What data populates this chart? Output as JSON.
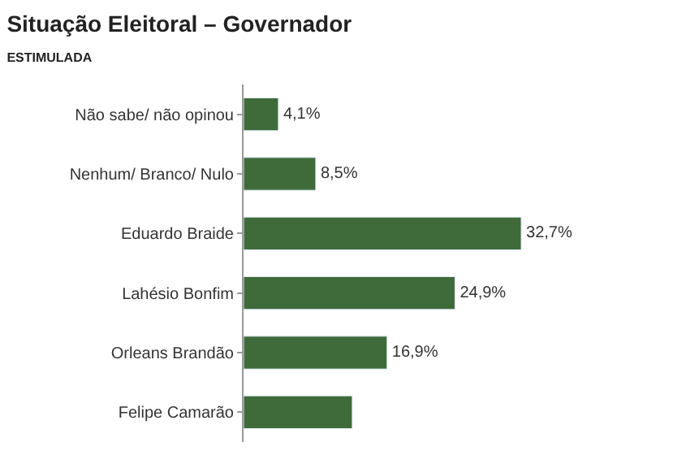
{
  "chart_data": {
    "type": "bar",
    "orientation": "horizontal",
    "title": "Situação Eleitoral – Governador",
    "subtitle": "ESTIMULADA",
    "categories": [
      "Não sabe/ não opinou",
      "Nenhum/ Branco/ Nulo",
      "Eduardo Braide",
      "Lahésio Bonfim",
      "Orleans Brandão",
      "Felipe Camarão"
    ],
    "values": [
      4.1,
      8.5,
      32.7,
      24.9,
      16.9,
      12.8
    ],
    "value_labels": [
      "4,1%",
      "8,5%",
      "32,7%",
      "24,9%",
      "16,9%",
      null
    ],
    "color": "#3f6b3b"
  }
}
